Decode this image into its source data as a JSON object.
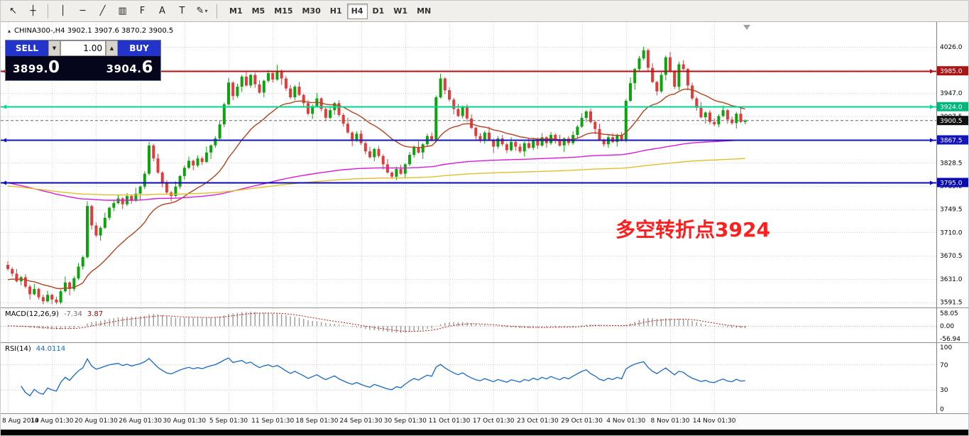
{
  "toolbar": {
    "tools": [
      {
        "name": "cursor-tool",
        "glyph": "↖"
      },
      {
        "name": "crosshair-tool",
        "glyph": "┼"
      },
      {
        "type": "separator"
      },
      {
        "name": "vertical-line-tool",
        "glyph": "│"
      },
      {
        "name": "horizontal-line-tool",
        "glyph": "─"
      },
      {
        "name": "trendline-tool",
        "glyph": "╱"
      },
      {
        "name": "equidistant-channel-tool",
        "glyph": "▥"
      },
      {
        "name": "fibonacci-tool",
        "glyph": "F"
      },
      {
        "name": "text-tool",
        "glyph": "A"
      },
      {
        "name": "label-tool",
        "glyph": "T"
      },
      {
        "name": "shapes-tool",
        "glyph": "✎",
        "dropdown": true
      },
      {
        "type": "separator"
      }
    ],
    "timeframes": [
      {
        "label": "M1",
        "active": false
      },
      {
        "label": "M5",
        "active": false
      },
      {
        "label": "M15",
        "active": false
      },
      {
        "label": "M30",
        "active": false
      },
      {
        "label": "H1",
        "active": false
      },
      {
        "label": "H4",
        "active": true
      },
      {
        "label": "D1",
        "active": false
      },
      {
        "label": "W1",
        "active": false
      },
      {
        "label": "MN",
        "active": false
      }
    ]
  },
  "chart": {
    "header": {
      "icon": "▴",
      "text": "CHINA300-,H4 3902.1 3907.6 3870.2 3900.5"
    },
    "trade_panel": {
      "sell_label": "SELL",
      "buy_label": "BUY",
      "volume": "1.00",
      "sell_price_main": "3899.",
      "sell_price_big": "0",
      "buy_price_main": "3904.",
      "buy_price_big": "6"
    },
    "annotation": {
      "text": "多空转折点3924",
      "color": "#ff1e1e"
    },
    "colors": {
      "up": "#0da30d",
      "down": "#e03c3c",
      "grid": "#d2d2d2"
    },
    "hlines": [
      {
        "price": 3985.0,
        "color": "#aa1414",
        "width": 2
      },
      {
        "price": 3924.0,
        "color": "#00d68f",
        "width": 2
      },
      {
        "price": 3867.5,
        "color": "#1414bb",
        "width": 2
      },
      {
        "price": 3795.0,
        "color": "#0a0ab4",
        "width": 2
      }
    ],
    "badges": [
      {
        "label": "3985.0",
        "price": 3985.0,
        "bg": "#aa1414"
      },
      {
        "label": "3924.0",
        "price": 3924.0,
        "bg": "#00b87c"
      },
      {
        "label": "3900.5",
        "price": 3900.5,
        "bg": "#101010"
      },
      {
        "label": "3867.5",
        "price": 3867.5,
        "bg": "#1414bb"
      },
      {
        "label": "3795.0",
        "price": 3795.0,
        "bg": "#0a0ab4"
      }
    ],
    "current_price": 3900.5
  },
  "chart_data": {
    "type": "candlestick",
    "symbol": "CHINA300-",
    "timeframe": "H4",
    "ohlc_note": "open=previous close; high/low derived from wick patterns",
    "first_open": 3655,
    "closes": [
      3648,
      3640,
      3627,
      3634,
      3618,
      3605,
      3614,
      3600,
      3593,
      3604,
      3596,
      3591,
      3610,
      3625,
      3614,
      3632,
      3652,
      3668,
      3755,
      3722,
      3705,
      3718,
      3735,
      3752,
      3760,
      3768,
      3758,
      3772,
      3764,
      3776,
      3788,
      3810,
      3858,
      3836,
      3812,
      3794,
      3778,
      3772,
      3788,
      3806,
      3820,
      3832,
      3824,
      3836,
      3830,
      3846,
      3858,
      3870,
      3894,
      3928,
      3965,
      3942,
      3958,
      3975,
      3960,
      3978,
      3962,
      3948,
      3968,
      3981,
      3970,
      3985,
      3972,
      3955,
      3940,
      3958,
      3944,
      3930,
      3912,
      3925,
      3938,
      3920,
      3905,
      3918,
      3930,
      3910,
      3895,
      3880,
      3868,
      3878,
      3862,
      3848,
      3838,
      3852,
      3840,
      3826,
      3812,
      3805,
      3818,
      3810,
      3826,
      3842,
      3855,
      3846,
      3860,
      3874,
      3868,
      3940,
      3972,
      3952,
      3936,
      3920,
      3908,
      3924,
      3904,
      3888,
      3874,
      3866,
      3880,
      3868,
      3856,
      3870,
      3860,
      3850,
      3864,
      3856,
      3848,
      3862,
      3854,
      3868,
      3858,
      3872,
      3862,
      3876,
      3866,
      3858,
      3870,
      3862,
      3876,
      3890,
      3905,
      3916,
      3898,
      3886,
      3868,
      3860,
      3872,
      3864,
      3876,
      3868,
      3934,
      3964,
      3988,
      4006,
      4020,
      3990,
      3966,
      3950,
      3978,
      4008,
      3984,
      3958,
      3996,
      3988,
      3960,
      3938,
      3922,
      3906,
      3914,
      3898,
      3894,
      3908,
      3918,
      3902,
      3896,
      3912,
      3898,
      3900.5
    ],
    "wick_up": [
      6,
      3,
      8,
      2,
      5,
      3,
      9,
      2,
      4,
      7,
      2,
      5,
      3,
      10,
      2,
      4
    ],
    "wick_dn": [
      3,
      5,
      2,
      7,
      3,
      9,
      2,
      4,
      6,
      2,
      8,
      3,
      5,
      2,
      11,
      4
    ],
    "y_ticks": [
      4026.0,
      3986.5,
      3947.0,
      3907.5,
      3868.0,
      3828.5,
      3789.0,
      3749.5,
      3710.0,
      3670.5,
      3631.0,
      3591.5
    ],
    "x_labels": [
      "8 Aug 2019",
      "14 Aug 01:30",
      "20 Aug 01:30",
      "26 Aug 01:30",
      "30 Aug 01:30",
      "5 Sep 01:30",
      "11 Sep 01:30",
      "18 Sep 01:30",
      "24 Sep 01:30",
      "30 Sep 01:30",
      "11 Oct 01:30",
      "17 Oct 01:30",
      "23 Oct 01:30",
      "29 Oct 01:30",
      "4 Nov 01:30",
      "8 Nov 01:30",
      "14 Nov 01:30"
    ],
    "plot": {
      "p_top": 4068,
      "k": 0.828,
      "x0": 10,
      "dx": 6.22
    },
    "indicators": {
      "mas": [
        {
          "name": "ma-fast-red",
          "color": "#b5421c",
          "alpha": 0.09,
          "init": 3628
        },
        {
          "name": "ma-medium-magenta",
          "color": "#d81bd8",
          "alpha": 0.01,
          "init": 3796
        },
        {
          "name": "ma-slow-yellow",
          "color": "#e2bf2a",
          "alpha": 0.005,
          "init": 3790
        }
      ],
      "macd": {
        "fast": 12,
        "slow": 26,
        "signal": 9
      },
      "rsi": {
        "period": 14,
        "levels": [
          70,
          30
        ]
      }
    }
  },
  "macd_panel": {
    "label": "MACD(12,26,9)",
    "main_value": "-7.34",
    "signal_value": "3.87",
    "axis_labels": [
      "58.05",
      "0.00",
      "-56.94"
    ]
  },
  "rsi_panel": {
    "label": "RSI(14)",
    "value": "44.0114",
    "axis_labels": [
      "100",
      "70",
      "30",
      "0"
    ]
  }
}
